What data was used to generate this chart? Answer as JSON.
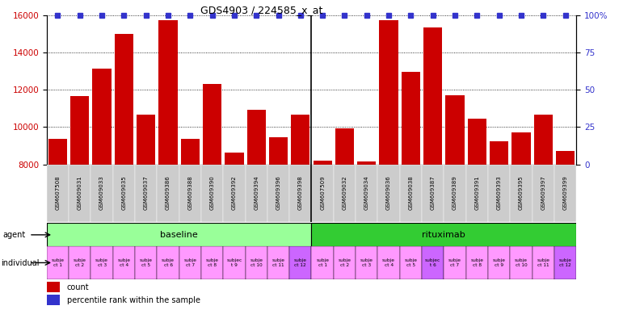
{
  "title": "GDS4903 / 224585_x_at",
  "samples": [
    "GSM607508",
    "GSM609031",
    "GSM609033",
    "GSM609035",
    "GSM609037",
    "GSM609386",
    "GSM609388",
    "GSM609390",
    "GSM609392",
    "GSM609394",
    "GSM609396",
    "GSM609398",
    "GSM607509",
    "GSM609032",
    "GSM609034",
    "GSM609036",
    "GSM609038",
    "GSM609387",
    "GSM609389",
    "GSM609391",
    "GSM609393",
    "GSM609395",
    "GSM609397",
    "GSM609399"
  ],
  "counts": [
    9350,
    11650,
    13150,
    15000,
    10650,
    15750,
    9350,
    12300,
    8650,
    10950,
    9450,
    10650,
    8200,
    9950,
    8150,
    15750,
    12950,
    15350,
    11700,
    10450,
    9250,
    9700,
    10650,
    8700
  ],
  "percentiles": [
    100,
    100,
    100,
    100,
    100,
    100,
    100,
    100,
    100,
    100,
    100,
    100,
    100,
    100,
    100,
    100,
    100,
    100,
    100,
    100,
    100,
    100,
    100,
    100
  ],
  "individuals": [
    "subje\nct 1",
    "subje\nct 2",
    "subje\nct 3",
    "subje\nct 4",
    "subje\nct 5",
    "subje\nct 6",
    "subje\nct 7",
    "subje\nct 8",
    "subjec\nt 9",
    "subje\nct 10",
    "subje\nct 11",
    "subje\nct 12",
    "subje\nct 1",
    "subje\nct 2",
    "subje\nct 3",
    "subje\nct 4",
    "subje\nct 5",
    "subjec\nt 6",
    "subje\nct 7",
    "subje\nct 8",
    "subje\nct 9",
    "subje\nct 10",
    "subje\nct 11",
    "subje\nct 12"
  ],
  "indiv_colors": [
    "#ff99ff",
    "#ff99ff",
    "#ff99ff",
    "#ff99ff",
    "#ff99ff",
    "#ff99ff",
    "#ff99ff",
    "#ff99ff",
    "#ff99ff",
    "#ff99ff",
    "#ff99ff",
    "#cc66ff",
    "#ff99ff",
    "#ff99ff",
    "#ff99ff",
    "#ff99ff",
    "#ff99ff",
    "#cc66ff",
    "#ff99ff",
    "#ff99ff",
    "#ff99ff",
    "#ff99ff",
    "#ff99ff",
    "#cc66ff"
  ],
  "bar_color": "#cc0000",
  "dot_color": "#3333cc",
  "baseline_color": "#99ff99",
  "rituximab_color": "#33cc33",
  "xtick_bg": "#cccccc",
  "ylim_left": [
    8000,
    16000
  ],
  "ylim_right": [
    0,
    100
  ],
  "yticks_left": [
    8000,
    10000,
    12000,
    14000,
    16000
  ],
  "yticks_right": [
    0,
    25,
    50,
    75,
    100
  ],
  "n_baseline": 12,
  "n_rituximab": 12
}
